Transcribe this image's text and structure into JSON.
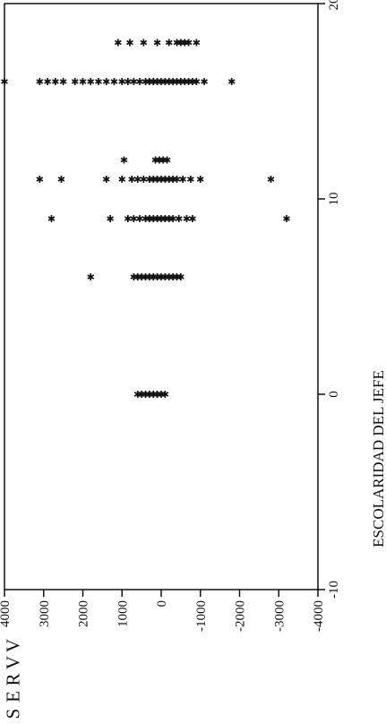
{
  "chart_data": {
    "type": "scatter",
    "marker": "star",
    "xlabel": "ESCOLARIDAD DEL JEFE",
    "ylabel": "VVRES",
    "xlim": [
      -10,
      20
    ],
    "ylim": [
      -4000,
      4000
    ],
    "x_ticks": [
      "-10",
      "0",
      "10",
      "20"
    ],
    "y_ticks": [
      "4000",
      "3000",
      "2000",
      "1000",
      "0",
      "-1000",
      "-2000",
      "-3000",
      "-4000"
    ],
    "grid": false,
    "colors": {
      "background": "#ffffff",
      "ink": "#111111",
      "axis": "#000000"
    },
    "points": [
      {
        "x": 0,
        "y": 600
      },
      {
        "x": 0,
        "y": 500
      },
      {
        "x": 0,
        "y": 400
      },
      {
        "x": 0,
        "y": 300
      },
      {
        "x": 0,
        "y": 200
      },
      {
        "x": 0,
        "y": 100
      },
      {
        "x": 0,
        "y": 0
      },
      {
        "x": 0,
        "y": -100
      },
      {
        "x": 6,
        "y": 1800
      },
      {
        "x": 6,
        "y": 700
      },
      {
        "x": 6,
        "y": 600
      },
      {
        "x": 6,
        "y": 500
      },
      {
        "x": 6,
        "y": 400
      },
      {
        "x": 6,
        "y": 300
      },
      {
        "x": 6,
        "y": 200
      },
      {
        "x": 6,
        "y": 100
      },
      {
        "x": 6,
        "y": 0
      },
      {
        "x": 6,
        "y": -100
      },
      {
        "x": 6,
        "y": -200
      },
      {
        "x": 6,
        "y": -300
      },
      {
        "x": 6,
        "y": -400
      },
      {
        "x": 6,
        "y": -500
      },
      {
        "x": 9,
        "y": 2800
      },
      {
        "x": 9,
        "y": 1300
      },
      {
        "x": 9,
        "y": 850
      },
      {
        "x": 9,
        "y": 700
      },
      {
        "x": 9,
        "y": 550
      },
      {
        "x": 9,
        "y": 400
      },
      {
        "x": 9,
        "y": 300
      },
      {
        "x": 9,
        "y": 200
      },
      {
        "x": 9,
        "y": 100
      },
      {
        "x": 9,
        "y": 0
      },
      {
        "x": 9,
        "y": -100
      },
      {
        "x": 9,
        "y": -200
      },
      {
        "x": 9,
        "y": -300
      },
      {
        "x": 9,
        "y": -450
      },
      {
        "x": 9,
        "y": -650
      },
      {
        "x": 9,
        "y": -800
      },
      {
        "x": 9,
        "y": -3200
      },
      {
        "x": 11,
        "y": 3100
      },
      {
        "x": 11,
        "y": 2550
      },
      {
        "x": 11,
        "y": 1400
      },
      {
        "x": 11,
        "y": 1000
      },
      {
        "x": 11,
        "y": 750
      },
      {
        "x": 11,
        "y": 600
      },
      {
        "x": 11,
        "y": 450
      },
      {
        "x": 11,
        "y": 300
      },
      {
        "x": 11,
        "y": 200
      },
      {
        "x": 11,
        "y": 100
      },
      {
        "x": 11,
        "y": 0
      },
      {
        "x": 11,
        "y": -100
      },
      {
        "x": 11,
        "y": -200
      },
      {
        "x": 11,
        "y": -300
      },
      {
        "x": 11,
        "y": -400
      },
      {
        "x": 11,
        "y": -550
      },
      {
        "x": 11,
        "y": -750
      },
      {
        "x": 11,
        "y": -1000
      },
      {
        "x": 11,
        "y": -2800
      },
      {
        "x": 12,
        "y": 950
      },
      {
        "x": 12,
        "y": 150
      },
      {
        "x": 12,
        "y": 50
      },
      {
        "x": 12,
        "y": -50
      },
      {
        "x": 12,
        "y": -150
      },
      {
        "x": 16,
        "y": 4000
      },
      {
        "x": 16,
        "y": 3100
      },
      {
        "x": 16,
        "y": 2900
      },
      {
        "x": 16,
        "y": 2700
      },
      {
        "x": 16,
        "y": 2500
      },
      {
        "x": 16,
        "y": 2200
      },
      {
        "x": 16,
        "y": 2000
      },
      {
        "x": 16,
        "y": 1800
      },
      {
        "x": 16,
        "y": 1600
      },
      {
        "x": 16,
        "y": 1400
      },
      {
        "x": 16,
        "y": 1200
      },
      {
        "x": 16,
        "y": 1000
      },
      {
        "x": 16,
        "y": 850
      },
      {
        "x": 16,
        "y": 700
      },
      {
        "x": 16,
        "y": 550
      },
      {
        "x": 16,
        "y": 400
      },
      {
        "x": 16,
        "y": 300
      },
      {
        "x": 16,
        "y": 200
      },
      {
        "x": 16,
        "y": 100
      },
      {
        "x": 16,
        "y": 0
      },
      {
        "x": 16,
        "y": -100
      },
      {
        "x": 16,
        "y": -200
      },
      {
        "x": 16,
        "y": -300
      },
      {
        "x": 16,
        "y": -400
      },
      {
        "x": 16,
        "y": -500
      },
      {
        "x": 16,
        "y": -600
      },
      {
        "x": 16,
        "y": -700
      },
      {
        "x": 16,
        "y": -800
      },
      {
        "x": 16,
        "y": -900
      },
      {
        "x": 16,
        "y": -1100
      },
      {
        "x": 16,
        "y": -1800
      },
      {
        "x": 18,
        "y": 1100
      },
      {
        "x": 18,
        "y": 800
      },
      {
        "x": 18,
        "y": 450
      },
      {
        "x": 18,
        "y": 100
      },
      {
        "x": 18,
        "y": -200
      },
      {
        "x": 18,
        "y": -400
      },
      {
        "x": 18,
        "y": -500
      },
      {
        "x": 18,
        "y": -600
      },
      {
        "x": 18,
        "y": -700
      },
      {
        "x": 18,
        "y": -900
      }
    ]
  }
}
